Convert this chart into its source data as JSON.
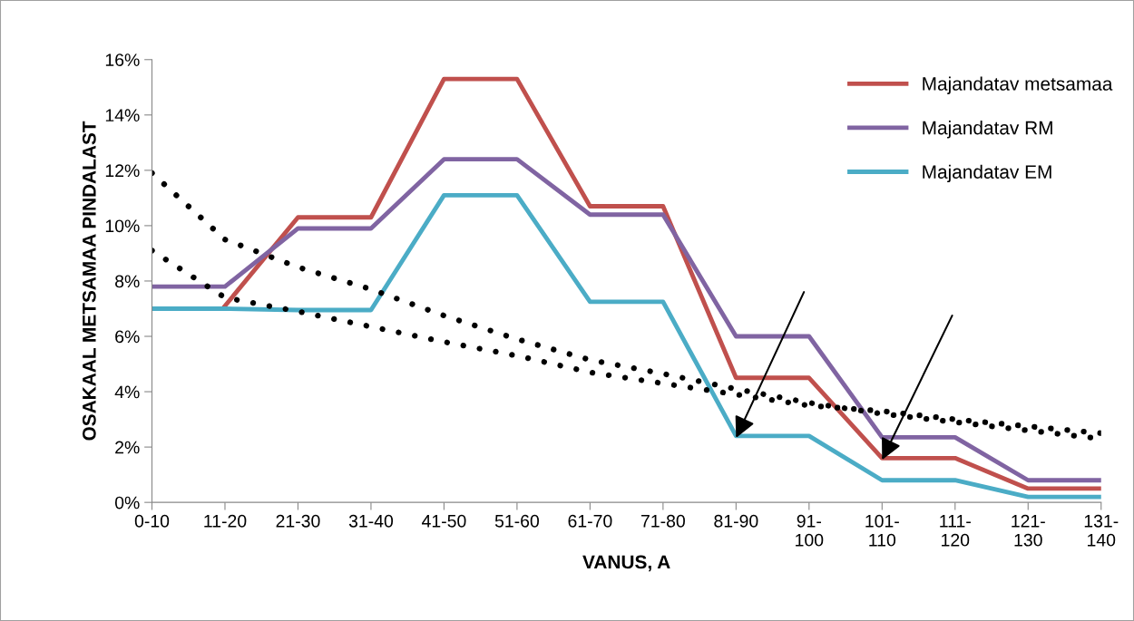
{
  "chart_data": {
    "type": "line",
    "xlabel": "VANUS, A",
    "ylabel": "OSAKAAL METSAMAA PINDALAST",
    "categories": [
      "0-10",
      "11-20",
      "21-30",
      "31-40",
      "41-50",
      "51-60",
      "61-70",
      "71-80",
      "81-90",
      "91-\n100",
      "101-\n110",
      "111-\n120",
      "121-\n130",
      "131-\n140"
    ],
    "series": [
      {
        "name": "Majandatav metsamaa",
        "color": "#c0504d",
        "line_style": "solid",
        "values": [
          null,
          7.1,
          10.3,
          10.3,
          15.3,
          15.3,
          10.7,
          10.7,
          4.5,
          4.5,
          1.6,
          1.6,
          0.5,
          0.5
        ]
      },
      {
        "name": "Majandatav RM",
        "color": "#8064a2",
        "line_style": "solid",
        "values": [
          7.8,
          7.8,
          9.9,
          9.9,
          12.4,
          12.4,
          10.4,
          10.4,
          6.0,
          6.0,
          2.35,
          2.35,
          0.8,
          0.8
        ]
      },
      {
        "name": "Majandatav EM",
        "color": "#4bacc6",
        "line_style": "solid",
        "values": [
          7.0,
          7.0,
          6.95,
          6.95,
          11.1,
          11.1,
          7.25,
          7.25,
          2.4,
          2.4,
          0.8,
          0.8,
          0.2,
          0.2
        ]
      },
      {
        "color": "#000000",
        "line_style": "dotted",
        "values": [
          11.9,
          9.5,
          8.5,
          7.7,
          6.75,
          5.9,
          5.15,
          4.65,
          4.1,
          3.6,
          3.2,
          2.9,
          2.6,
          2.3
        ]
      },
      {
        "color": "#000000",
        "line_style": "dotted",
        "values": [
          9.1,
          7.4,
          6.9,
          6.35,
          5.8,
          5.3,
          4.7,
          4.3,
          3.9,
          3.5,
          3.3,
          3.0,
          2.75,
          2.5
        ]
      }
    ],
    "ylim": [
      0,
      16
    ],
    "yticks": [
      {
        "value": 0,
        "label": "0%"
      },
      {
        "value": 2,
        "label": "2%"
      },
      {
        "value": 4,
        "label": "4%"
      },
      {
        "value": 6,
        "label": "6%"
      },
      {
        "value": 8,
        "label": "8%"
      },
      {
        "value": 10,
        "label": "10%"
      },
      {
        "value": 12,
        "label": "12%"
      },
      {
        "value": 14,
        "label": "14%"
      },
      {
        "value": 16,
        "label": "16%"
      }
    ],
    "grid": false,
    "legend": "top right",
    "marker": "none"
  }
}
